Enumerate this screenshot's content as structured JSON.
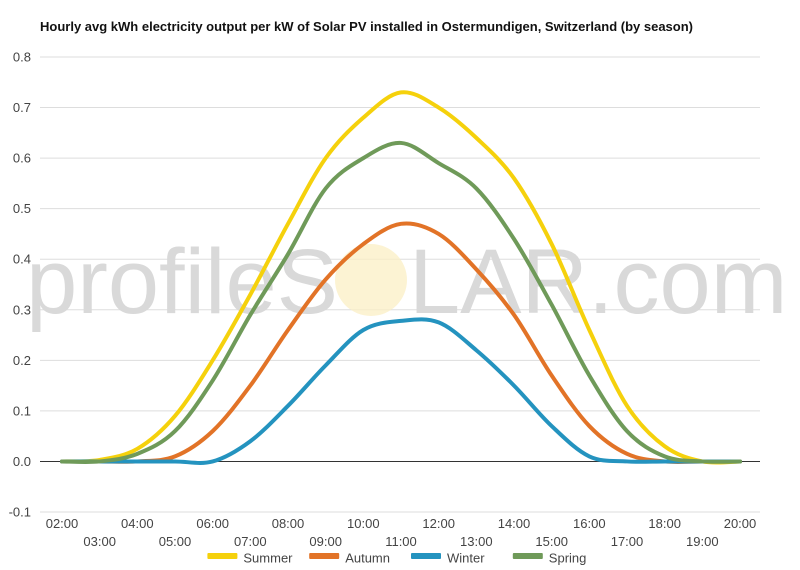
{
  "chart_data": {
    "type": "line",
    "title": "Hourly avg kWh electricity output per kW of Solar PV installed in Ostermundigen, Switzerland (by season)",
    "x": [
      "02:00",
      "03:00",
      "04:00",
      "05:00",
      "06:00",
      "07:00",
      "08:00",
      "09:00",
      "10:00",
      "11:00",
      "12:00",
      "13:00",
      "14:00",
      "15:00",
      "16:00",
      "17:00",
      "18:00",
      "19:00",
      "20:00"
    ],
    "ylim": [
      -0.1,
      0.8
    ],
    "yticks": [
      "0.8",
      "0.7",
      "0.6",
      "0.5",
      "0.4",
      "0.3",
      "0.2",
      "0.1",
      "0.0",
      "-0.1"
    ],
    "grid": true,
    "legend": "bottom",
    "series": [
      {
        "name": "Summer",
        "color": "#f5d10c",
        "values": [
          0.0,
          0.003,
          0.025,
          0.09,
          0.2,
          0.33,
          0.47,
          0.6,
          0.68,
          0.73,
          0.7,
          0.64,
          0.56,
          0.43,
          0.26,
          0.11,
          0.03,
          0.0,
          0.0
        ]
      },
      {
        "name": "Autumn",
        "color": "#e27327",
        "values": [
          0.0,
          0.0,
          0.0,
          0.01,
          0.06,
          0.15,
          0.26,
          0.36,
          0.43,
          0.47,
          0.45,
          0.38,
          0.29,
          0.17,
          0.07,
          0.015,
          0.0,
          0.0,
          0.0
        ]
      },
      {
        "name": "Winter",
        "color": "#2493bf",
        "values": [
          0.0,
          0.0,
          0.0,
          0.0,
          0.0,
          0.04,
          0.11,
          0.19,
          0.26,
          0.278,
          0.275,
          0.22,
          0.15,
          0.07,
          0.01,
          0.0,
          0.0,
          0.0,
          0.0
        ]
      },
      {
        "name": "Spring",
        "color": "#6f9a59",
        "values": [
          0.0,
          0.0,
          0.015,
          0.06,
          0.16,
          0.29,
          0.41,
          0.54,
          0.6,
          0.63,
          0.59,
          0.54,
          0.44,
          0.31,
          0.17,
          0.06,
          0.01,
          0.0,
          0.0
        ]
      }
    ]
  },
  "watermark": {
    "left": "profileS",
    "right": "LAR.com"
  }
}
